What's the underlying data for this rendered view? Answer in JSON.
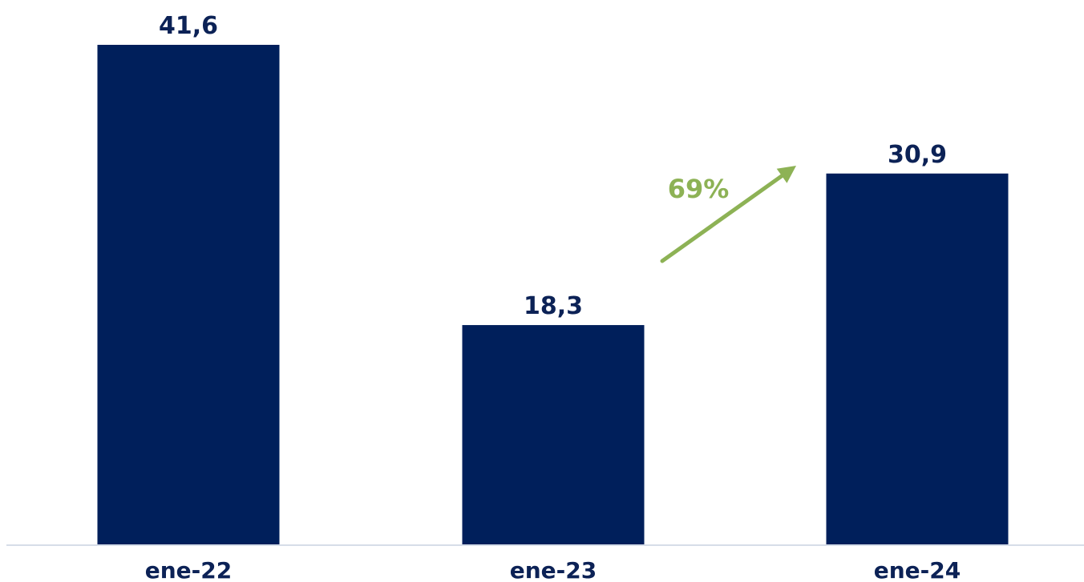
{
  "chart_data": {
    "type": "bar",
    "categories": [
      "ene-22",
      "ene-23",
      "ene-24"
    ],
    "values": [
      41.6,
      18.3,
      30.9
    ],
    "value_labels": [
      "41,6",
      "18,3",
      "30,9"
    ],
    "ylim": [
      0,
      41.6
    ],
    "grid": false,
    "annotations": [
      {
        "text": "69%",
        "from_category": "ene-23",
        "to_category": "ene-24",
        "kind": "growth-arrow"
      }
    ]
  },
  "colors": {
    "bar": "#001f5b",
    "label": "#0c2256",
    "arrow": "#8db255",
    "baseline": "#d6dde8"
  }
}
